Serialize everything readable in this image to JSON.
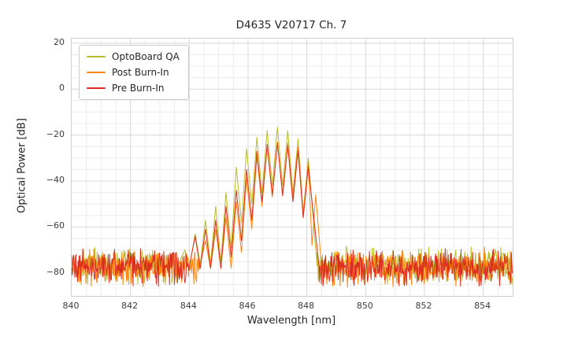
{
  "chart_data": {
    "type": "line",
    "title": "D4635 V20717 Ch. 7",
    "xlabel": "Wavelength [nm]",
    "ylabel": "Optical Power [dB]",
    "xlim": [
      840,
      855
    ],
    "ylim": [
      -90,
      22
    ],
    "grid": true,
    "legend_position": "upper left",
    "x_ticks": [
      {
        "v": 840,
        "label": "840"
      },
      {
        "v": 842,
        "label": "842"
      },
      {
        "v": 844,
        "label": "844"
      },
      {
        "v": 846,
        "label": "846"
      },
      {
        "v": 848,
        "label": "848"
      },
      {
        "v": 850,
        "label": "850"
      },
      {
        "v": 852,
        "label": "852"
      },
      {
        "v": 854,
        "label": "854"
      }
    ],
    "y_ticks": [
      {
        "v": 20,
        "label": "20"
      },
      {
        "v": 0,
        "label": "0"
      },
      {
        "v": -20,
        "label": "−20"
      },
      {
        "v": -40,
        "label": "−40"
      },
      {
        "v": -60,
        "label": "−60"
      },
      {
        "v": -80,
        "label": "−80"
      }
    ],
    "x_minor_step": 0.5,
    "y_minor_step": 5,
    "noise_step": 0.018,
    "noise_seed": 42,
    "series": [
      {
        "name": "OptoBoard QA",
        "color": "#b9bd2a",
        "noise_base": -77.0,
        "noise_spread": 9,
        "env_start": 843.6,
        "env_end": 848.35,
        "valley_depth": 24,
        "valley_floor": -76,
        "peaks": [
          [
            843.85,
            -70
          ],
          [
            844.2,
            -63
          ],
          [
            844.55,
            -57
          ],
          [
            844.9,
            -51
          ],
          [
            845.25,
            -45
          ],
          [
            845.6,
            -34
          ],
          [
            845.95,
            -26
          ],
          [
            846.3,
            -21
          ],
          [
            846.65,
            -18
          ],
          [
            847.0,
            -16.5
          ],
          [
            847.35,
            -18
          ],
          [
            847.7,
            -21.5
          ],
          [
            848.05,
            -30
          ]
        ]
      },
      {
        "name": "Post Burn-In",
        "color": "#ff870e",
        "noise_base": -77.5,
        "noise_spread": 9,
        "env_start": 844.35,
        "env_end": 848.5,
        "valley_depth": 22,
        "valley_floor": -78,
        "peaks": [
          [
            844.55,
            -66
          ],
          [
            844.9,
            -61
          ],
          [
            845.25,
            -56
          ],
          [
            845.6,
            -49
          ],
          [
            845.95,
            -39
          ],
          [
            846.3,
            -29
          ],
          [
            846.65,
            -25
          ],
          [
            847.0,
            -23
          ],
          [
            847.35,
            -23.5
          ],
          [
            847.7,
            -25
          ],
          [
            848.05,
            -32
          ],
          [
            848.3,
            -46
          ]
        ]
      },
      {
        "name": "Pre Burn-In",
        "color": "#da2c1f",
        "noise_base": -77.5,
        "noise_spread": 9,
        "env_start": 844.0,
        "env_end": 848.42,
        "valley_depth": 22,
        "valley_floor": -78,
        "peaks": [
          [
            844.2,
            -64
          ],
          [
            844.55,
            -61
          ],
          [
            844.9,
            -57
          ],
          [
            845.25,
            -51
          ],
          [
            845.6,
            -44
          ],
          [
            845.95,
            -35
          ],
          [
            846.3,
            -27
          ],
          [
            846.65,
            -24
          ],
          [
            847.0,
            -23.5
          ],
          [
            847.35,
            -24.5
          ],
          [
            847.7,
            -27
          ],
          [
            848.05,
            -34
          ]
        ]
      }
    ],
    "grid_major_color": "#d8d8d8",
    "grid_minor_color": "#ececec"
  }
}
